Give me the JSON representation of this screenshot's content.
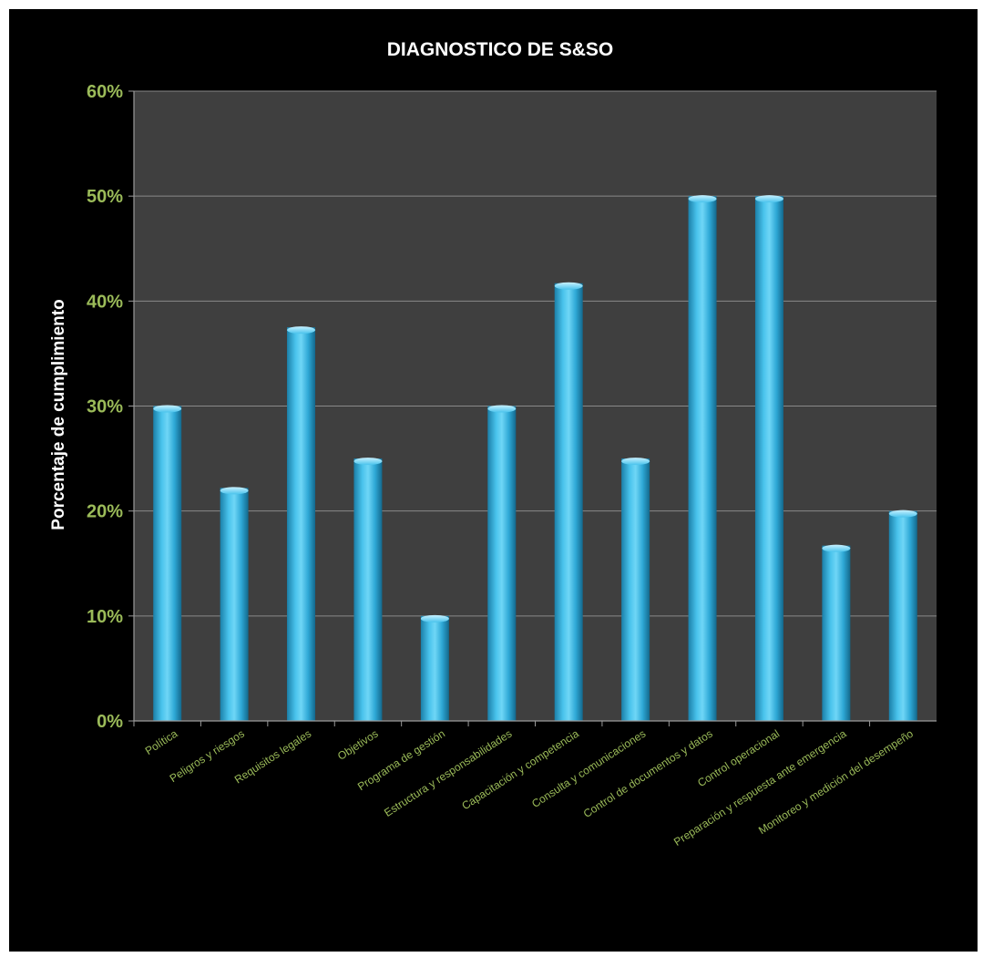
{
  "chart_data": {
    "type": "bar",
    "title": "DIAGNOSTICO DE S&SO",
    "ylabel": "Porcentaje de cumplimiento",
    "xlabel": "",
    "ylim": [
      0,
      60
    ],
    "yticks": [
      "0%",
      "10%",
      "20%",
      "30%",
      "40%",
      "50%",
      "60%"
    ],
    "ytick_values": [
      0,
      10,
      20,
      30,
      40,
      50,
      60
    ],
    "grid": true,
    "legend": "none",
    "categories": [
      "Política",
      "Peligros y riesgos",
      "Requisitos legales",
      "Objetivos",
      "Programa de gestión",
      "Estructura y responsabilidades",
      "Capacitación y competencia",
      "Consulta y comunicaciones",
      "Control de documentos y datos",
      "Control operacional",
      "Preparación y respuesta ante emergencia",
      "Monitoreo y medición del desempeño"
    ],
    "values": [
      30,
      22.2,
      37.5,
      25,
      10,
      30,
      41.7,
      25,
      50,
      50,
      16.7,
      20
    ]
  },
  "colors": {
    "background": "#000000",
    "plot_area": "#3f3f3f",
    "bar": "#2ea8d6",
    "bar_highlight": "#7fdcf7",
    "tick_label": "#9bbb59",
    "title": "#ffffff",
    "ylabel": "#ffffff",
    "gridline": "#8a8a8a"
  }
}
